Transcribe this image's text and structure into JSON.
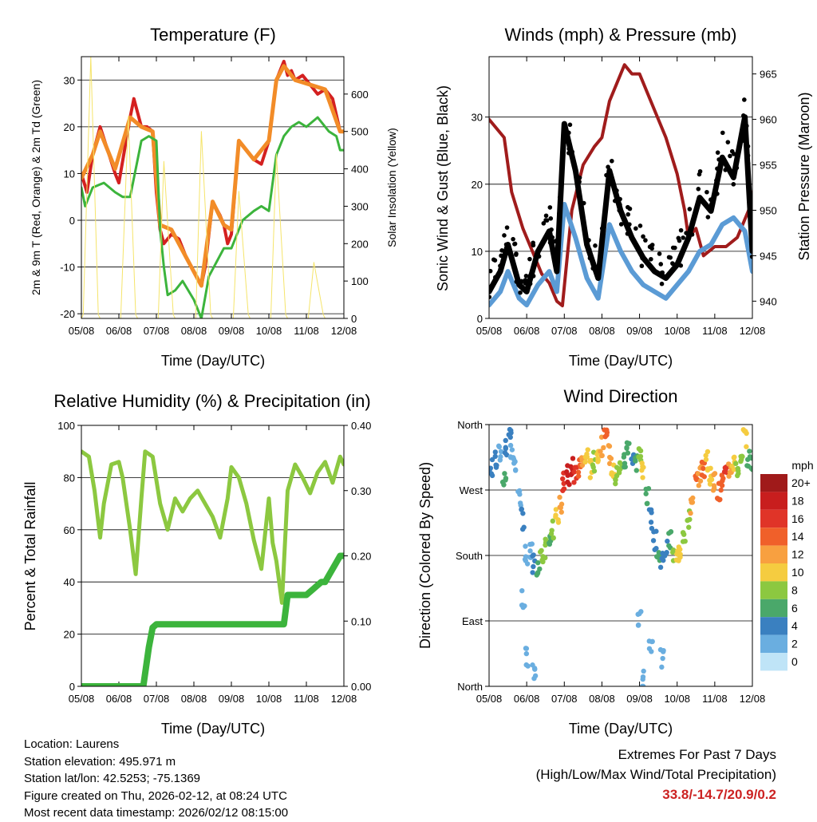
{
  "colors": {
    "red": "#d42020",
    "orange": "#f28c28",
    "green": "#3cb43c",
    "yellow": "#f5e46a",
    "maroon": "#a01c1c",
    "blue": "#5b9bd5",
    "black": "#000000",
    "rh": "#8cc840",
    "precip": "#3cb43c",
    "extreme": "#cc2222"
  },
  "time_ticks": [
    "05/08",
    "06/08",
    "07/08",
    "08/08",
    "09/08",
    "10/08",
    "11/08",
    "12/08"
  ],
  "speed_legend": {
    "unit": "mph",
    "labels": [
      "20+",
      "18",
      "16",
      "14",
      "12",
      "10",
      "8",
      "6",
      "4",
      "2",
      "0"
    ],
    "colors": [
      "#a01a1a",
      "#c81e1e",
      "#e03428",
      "#f0602a",
      "#f8a040",
      "#f5cc40",
      "#8cc840",
      "#4aa86a",
      "#3a80c0",
      "#6aaee0",
      "#bfe4f7"
    ]
  },
  "chart_data": [
    {
      "type": "line",
      "title": "Temperature (F)",
      "xlabel": "Time (Day/UTC)",
      "ylabel": "2m & 9m T (Red, Orange) & 2m Td (Green)",
      "y2label": "Solar Insolation (Yellow)",
      "ylim": [
        -21,
        35
      ],
      "y2lim": [
        0,
        700
      ],
      "yticks": [
        -20,
        -10,
        0,
        10,
        20,
        30
      ],
      "y2ticks": [
        0,
        100,
        200,
        300,
        400,
        500,
        600
      ],
      "xlim": [
        0,
        7
      ],
      "series": [
        {
          "name": "2m T",
          "color": "#d42020",
          "x": [
            0,
            0.15,
            0.3,
            0.5,
            0.7,
            0.9,
            1.0,
            1.3,
            1.4,
            1.6,
            1.75,
            1.9,
            2.0,
            2.1,
            2.2,
            2.4,
            2.6,
            2.8,
            3.0,
            3.2,
            3.3,
            3.5,
            3.7,
            3.8,
            3.9,
            4.0,
            4.2,
            4.4,
            4.6,
            4.8,
            5.0,
            5.2,
            5.4,
            5.5,
            5.6,
            5.7,
            5.9,
            6.1,
            6.3,
            6.5,
            6.7,
            6.9,
            7.0
          ],
          "values": [
            10,
            6,
            14,
            20,
            15,
            10,
            8,
            22,
            26,
            20,
            20,
            19,
            6,
            -2,
            -5,
            -3,
            -4,
            -8,
            -11,
            -14,
            -10,
            4,
            1,
            -1,
            -5,
            -3,
            17,
            15,
            13,
            12,
            17,
            30,
            34,
            31,
            32,
            30,
            31,
            29,
            27,
            28,
            26,
            19,
            19
          ]
        },
        {
          "name": "9m T",
          "color": "#f28c28",
          "x": [
            0,
            0.3,
            0.5,
            0.9,
            1.3,
            1.6,
            1.9,
            2.1,
            2.4,
            2.8,
            3.2,
            3.5,
            3.8,
            4.0,
            4.2,
            4.6,
            5.0,
            5.2,
            5.4,
            5.7,
            6.1,
            6.5,
            6.9,
            7.0
          ],
          "values": [
            9,
            14,
            19,
            11,
            22,
            20,
            19,
            -1,
            -2,
            -8,
            -14,
            4,
            -1,
            -2,
            17,
            13,
            17,
            30,
            33,
            30,
            29,
            28,
            19,
            19
          ]
        },
        {
          "name": "2m Td",
          "color": "#3cb43c",
          "x": [
            0,
            0.1,
            0.3,
            0.6,
            0.9,
            1.1,
            1.3,
            1.5,
            1.6,
            1.8,
            2.0,
            2.1,
            2.2,
            2.3,
            2.5,
            2.7,
            3.0,
            3.2,
            3.4,
            3.6,
            3.8,
            4.0,
            4.3,
            4.6,
            4.8,
            5.0,
            5.2,
            5.4,
            5.6,
            5.8,
            6.0,
            6.3,
            6.6,
            6.8,
            6.9,
            7.0
          ],
          "values": [
            7,
            3,
            7,
            8,
            6,
            5,
            5,
            13,
            17,
            18,
            17,
            -2,
            -10,
            -16,
            -15,
            -13,
            -17,
            -21,
            -12,
            -9,
            -6,
            -6,
            0,
            2,
            3,
            2,
            14,
            18,
            20,
            21,
            20,
            22,
            19,
            18,
            15,
            15
          ]
        },
        {
          "name": "Solar Insolation",
          "color": "#f5e46a",
          "axis": "y2",
          "x": [
            0,
            0.05,
            0.25,
            0.45,
            0.5,
            1.05,
            1.25,
            1.45,
            1.5,
            2.05,
            2.2,
            2.45,
            2.5,
            3.05,
            3.2,
            3.45,
            3.5,
            4.05,
            4.2,
            4.45,
            4.5,
            5.05,
            5.2,
            5.45,
            5.5,
            6.05,
            6.2,
            6.45,
            6.5,
            7.0
          ],
          "values": [
            0,
            10,
            700,
            10,
            0,
            0,
            540,
            10,
            0,
            0,
            420,
            10,
            0,
            0,
            500,
            10,
            0,
            0,
            340,
            10,
            0,
            0,
            440,
            10,
            0,
            0,
            150,
            10,
            0,
            0
          ]
        }
      ]
    },
    {
      "type": "line",
      "title": "Winds (mph) & Pressure (mb)",
      "xlabel": "Time (Day/UTC)",
      "ylabel": "Sonic Wind & Gust (Blue, Black)",
      "y2label": "Station Pressure (Maroon)",
      "ylim": [
        0,
        39
      ],
      "y2lim": [
        938.1,
        966.9
      ],
      "yticks": [
        0,
        10,
        20,
        30
      ],
      "y2ticks": [
        940,
        945,
        950,
        955,
        960,
        965
      ],
      "xlim": [
        0,
        7
      ],
      "series": [
        {
          "name": "Station Pressure",
          "color": "#a01c1c",
          "axis": "y2",
          "x": [
            0,
            0.4,
            0.6,
            0.9,
            1.2,
            1.4,
            1.6,
            1.8,
            1.95,
            2.2,
            2.5,
            2.8,
            3.0,
            3.2,
            3.4,
            3.6,
            3.8,
            4.0,
            4.3,
            4.7,
            5.0,
            5.2,
            5.3,
            5.5,
            5.7,
            6.0,
            6.3,
            6.6,
            6.9,
            7.0
          ],
          "values": [
            960,
            958,
            952,
            948,
            945,
            943,
            942,
            940,
            939.5,
            950,
            955,
            957,
            958,
            962,
            964,
            966,
            965,
            965,
            962,
            958,
            954,
            950,
            947,
            948,
            945,
            946,
            946,
            947,
            950,
            952
          ]
        },
        {
          "name": "Sonic Wind",
          "color": "#5b9bd5",
          "x": [
            0,
            0.3,
            0.5,
            0.8,
            1.0,
            1.3,
            1.6,
            1.8,
            2.0,
            2.3,
            2.6,
            2.9,
            3.2,
            3.5,
            3.8,
            4.1,
            4.4,
            4.7,
            5.0,
            5.3,
            5.6,
            5.9,
            6.2,
            6.5,
            6.8,
            7.0
          ],
          "values": [
            2,
            4,
            7,
            3,
            2,
            5,
            7,
            4,
            17,
            12,
            6,
            3,
            14,
            10,
            7,
            5,
            4,
            3,
            5,
            7,
            10,
            11,
            14,
            15,
            13,
            7
          ]
        },
        {
          "name": "Gust",
          "color": "#000000",
          "x": [
            0,
            0.3,
            0.5,
            0.8,
            1.0,
            1.3,
            1.6,
            1.8,
            2.0,
            2.3,
            2.6,
            2.9,
            3.2,
            3.5,
            3.8,
            4.1,
            4.4,
            4.7,
            5.0,
            5.3,
            5.6,
            5.9,
            6.2,
            6.5,
            6.8,
            7.0
          ],
          "values": [
            4,
            7,
            11,
            5,
            4,
            10,
            13,
            7,
            29,
            22,
            11,
            6,
            22,
            16,
            12,
            9,
            7,
            6,
            8,
            12,
            18,
            16,
            24,
            21,
            30,
            10
          ]
        }
      ]
    },
    {
      "type": "line",
      "title": "Relative Humidity (%) & Precipitation (in)",
      "xlabel": "Time (Day/UTC)",
      "ylabel": "Percent & Total Rainfall",
      "ylim": [
        0,
        100
      ],
      "y2lim": [
        0,
        0.4
      ],
      "yticks": [
        0,
        20,
        40,
        60,
        80,
        100
      ],
      "y2ticks": [
        "0.00",
        "0.10",
        "0.20",
        "0.30",
        "0.40"
      ],
      "xlim": [
        0,
        7
      ],
      "series": [
        {
          "name": "Relative Humidity",
          "color": "#8cc840",
          "x": [
            0,
            0.2,
            0.35,
            0.5,
            0.6,
            0.8,
            1.0,
            1.1,
            1.3,
            1.45,
            1.6,
            1.7,
            1.9,
            2.1,
            2.3,
            2.5,
            2.7,
            2.9,
            3.1,
            3.3,
            3.5,
            3.7,
            3.9,
            4.0,
            4.2,
            4.4,
            4.6,
            4.8,
            5.0,
            5.1,
            5.2,
            5.35,
            5.5,
            5.7,
            5.9,
            6.1,
            6.3,
            6.5,
            6.7,
            6.9,
            7.0
          ],
          "values": [
            90,
            88,
            75,
            57,
            70,
            85,
            86,
            80,
            60,
            43,
            72,
            90,
            88,
            70,
            60,
            72,
            67,
            72,
            75,
            70,
            65,
            57,
            72,
            84,
            80,
            70,
            56,
            45,
            72,
            55,
            48,
            32,
            75,
            85,
            80,
            74,
            82,
            86,
            78,
            88,
            85
          ]
        },
        {
          "name": "Total Precipitation",
          "color": "#3cb43c",
          "axis": "y2",
          "x": [
            0,
            1.6,
            1.65,
            1.8,
            1.9,
            2.0,
            2.2,
            2.5,
            3.0,
            3.5,
            4.0,
            4.5,
            5.0,
            5.4,
            5.5,
            5.6,
            5.7,
            6.0,
            6.2,
            6.4,
            6.5,
            6.6,
            6.7,
            6.8,
            6.9,
            7.0
          ],
          "values": [
            0,
            0,
            0,
            0.06,
            0.09,
            0.095,
            0.095,
            0.095,
            0.095,
            0.095,
            0.095,
            0.095,
            0.095,
            0.095,
            0.14,
            0.14,
            0.14,
            0.14,
            0.15,
            0.16,
            0.16,
            0.17,
            0.18,
            0.19,
            0.2,
            0.2
          ]
        }
      ]
    },
    {
      "type": "scatter",
      "title": "Wind Direction",
      "xlabel": "Time (Day/UTC)",
      "ylabel": "Direction (Colored By Speed)",
      "ylim": [
        0,
        360
      ],
      "ytick_values": [
        0,
        90,
        180,
        270,
        360
      ],
      "ytick_labels": [
        "North",
        "East",
        "South",
        "West",
        "North"
      ],
      "xlim": [
        0,
        7
      ],
      "series": [
        {
          "name": "Wind Direction",
          "x": [
            0.05,
            0.2,
            0.3,
            0.4,
            0.45,
            0.55,
            0.6,
            0.7,
            0.8,
            0.9,
            1.0,
            1.1,
            1.2,
            1.3,
            1.4,
            1.5,
            1.6,
            1.7,
            1.8,
            1.9,
            2.0,
            2.1,
            2.2,
            2.3,
            2.4,
            2.5,
            2.6,
            2.7,
            2.8,
            2.9,
            3.0,
            3.1,
            3.2,
            3.3,
            3.4,
            3.5,
            3.6,
            3.7,
            3.8,
            3.9,
            4.0,
            4.1,
            4.2,
            4.3,
            4.4,
            4.5,
            4.6,
            4.7,
            4.8,
            4.9,
            5.0,
            5.1,
            5.2,
            5.3,
            5.4,
            5.5,
            5.6,
            5.7,
            5.8,
            5.9,
            6.0,
            6.1,
            6.2,
            6.3,
            6.4,
            6.5,
            6.6,
            6.7,
            6.8,
            6.9,
            7.0,
            0.9,
            1.0,
            1.2,
            4.0,
            4.1,
            4.3,
            4.6
          ],
          "values": [
            300,
            310,
            320,
            290,
            330,
            340,
            320,
            300,
            260,
            230,
            180,
            190,
            170,
            160,
            175,
            190,
            200,
            215,
            230,
            250,
            280,
            290,
            300,
            290,
            300,
            310,
            320,
            300,
            310,
            320,
            330,
            340,
            320,
            300,
            290,
            300,
            310,
            330,
            320,
            310,
            320,
            300,
            260,
            230,
            200,
            180,
            170,
            190,
            200,
            180,
            185,
            190,
            210,
            230,
            250,
            280,
            290,
            300,
            310,
            290,
            280,
            270,
            280,
            290,
            300,
            310,
            300,
            320,
            340,
            310,
            300,
            120,
            40,
            20,
            90,
            10,
            60,
            40
          ],
          "speeds": [
            3,
            4,
            2,
            5,
            3,
            4,
            2,
            1,
            2,
            3,
            1,
            2,
            3,
            5,
            7,
            8,
            6,
            7,
            9,
            12,
            16,
            18,
            17,
            15,
            14,
            12,
            10,
            9,
            8,
            10,
            12,
            14,
            11,
            9,
            8,
            7,
            6,
            5,
            4,
            6,
            8,
            10,
            6,
            4,
            3,
            5,
            4,
            3,
            6,
            8,
            10,
            9,
            8,
            7,
            11,
            13,
            12,
            14,
            10,
            9,
            12,
            14,
            13,
            15,
            11,
            9,
            8,
            7,
            10,
            6,
            5,
            1,
            1,
            2,
            1,
            1,
            2,
            1
          ]
        }
      ]
    }
  ],
  "info": {
    "location": "Location: Laurens",
    "elevation": "Station elevation: 495.971 m",
    "latlon": "Station lat/lon: 42.5253; -75.1369",
    "created": "Figure created on Thu, 2026-02-12, at 08:24 UTC",
    "recent": "Most recent data timestamp: 2026/02/12 08:15:00"
  },
  "extremes": {
    "title": "Extremes For Past 7 Days",
    "subtitle": "(High/Low/Max Wind/Total Precipitation)",
    "value": "33.8/-14.7/20.9/0.2"
  }
}
